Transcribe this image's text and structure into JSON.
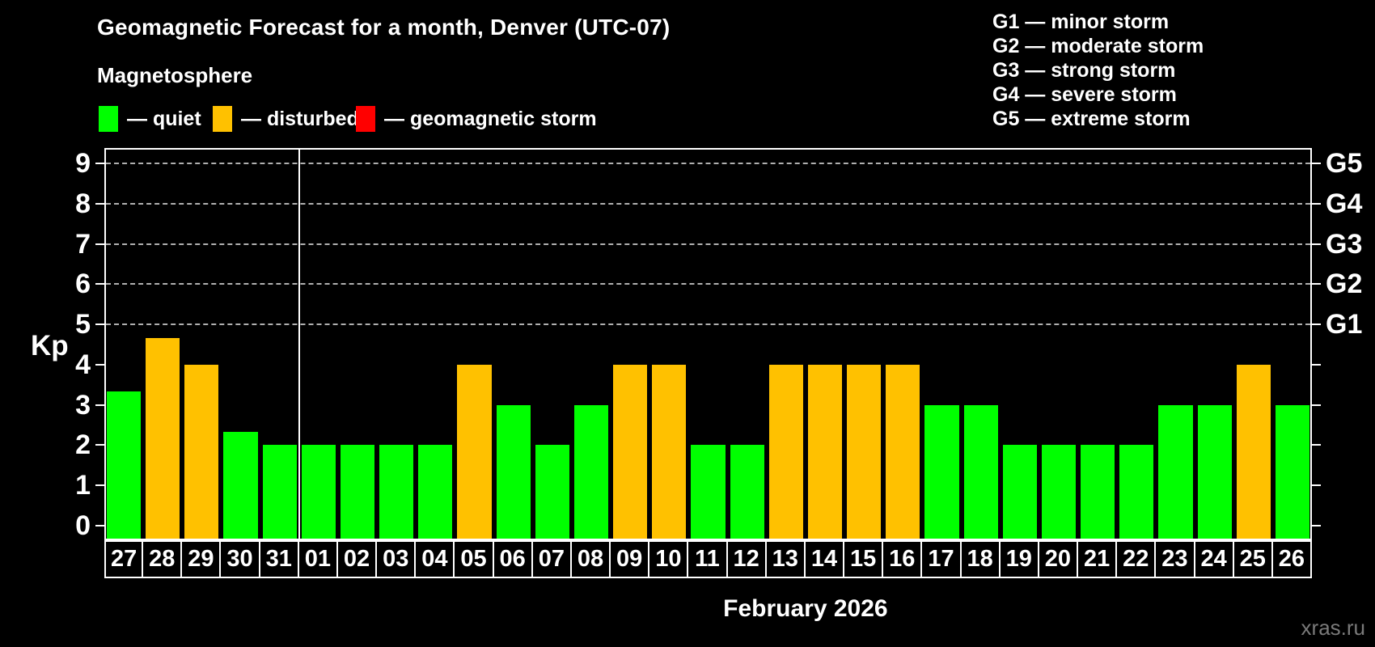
{
  "title": "Geomagnetic Forecast for a month, Denver (UTC-07)",
  "subtitle": "Magnetosphere",
  "legend": {
    "items": [
      {
        "id": "quiet",
        "label": "— quiet"
      },
      {
        "id": "disturbed",
        "label": "— disturbed"
      },
      {
        "id": "storm",
        "label": "— geomagnetic storm"
      }
    ]
  },
  "g_legend": [
    "G1 — minor storm",
    "G2 — moderate storm",
    "G3 — strong storm",
    "G4 — severe storm",
    "G5 — extreme storm"
  ],
  "watermark": "xras.ru",
  "colors": {
    "background": "#000000",
    "quiet": "#00ff00",
    "disturbed": "#ffc100",
    "storm": "#ff0000",
    "axis": "#ffffff",
    "grid": "#b0b0b0",
    "watermark": "#7a7a7a"
  },
  "chart_data": {
    "type": "bar",
    "title": "Geomagnetic Forecast for a month, Denver (UTC-07)",
    "ylabel": "Kp",
    "xlabel": "February 2026",
    "ylim": [
      0,
      9
    ],
    "yticks": [
      0,
      1,
      2,
      3,
      4,
      5,
      6,
      7,
      8,
      9
    ],
    "grid_kp": [
      5,
      6,
      7,
      8,
      9
    ],
    "grid_style": "dashed horizontal, light gray, at Kp 5-9 only",
    "right_axis": [
      {
        "label": "G1",
        "kp": 5
      },
      {
        "label": "G2",
        "kp": 6
      },
      {
        "label": "G3",
        "kp": 7
      },
      {
        "label": "G4",
        "kp": 8
      },
      {
        "label": "G5",
        "kp": 9
      }
    ],
    "thresholds": {
      "disturbed_min": 4,
      "storm_min": 5
    },
    "month_separator_after_index": 4,
    "legend_position": "top-left",
    "categories": [
      "27",
      "28",
      "29",
      "30",
      "31",
      "01",
      "02",
      "03",
      "04",
      "05",
      "06",
      "07",
      "08",
      "09",
      "10",
      "11",
      "12",
      "13",
      "14",
      "15",
      "16",
      "17",
      "18",
      "19",
      "20",
      "21",
      "22",
      "23",
      "24",
      "25",
      "26"
    ],
    "values": [
      3.33,
      4.67,
      4,
      2.33,
      2,
      2,
      2,
      2,
      2,
      4,
      3,
      2,
      3,
      4,
      4,
      2,
      2,
      4,
      4,
      4,
      4,
      3,
      3,
      2,
      2,
      2,
      2,
      3,
      3,
      4,
      3
    ]
  }
}
